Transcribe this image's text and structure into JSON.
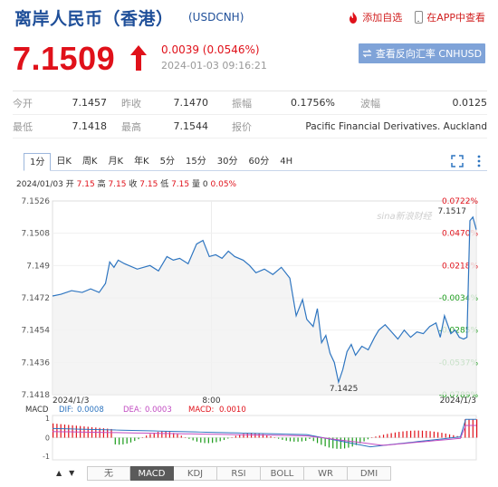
{
  "header": {
    "title": "离岸人民币（香港）",
    "symbol": "(USDCNH)",
    "links": [
      {
        "label": "添加自选",
        "icon": "flame-icon"
      },
      {
        "label": "在APP中查看",
        "icon": "phone-icon"
      }
    ]
  },
  "quote": {
    "price": "7.1509",
    "change": "0.0039 (0.0546%)",
    "time": "2024-01-03 09:16:21",
    "reverse_button": "查看反向汇率 CNHUSD",
    "colors": {
      "up": "#e0111a",
      "down": "#1a9b1a",
      "line": "#2e75c0"
    }
  },
  "stats": [
    [
      {
        "label": "今开",
        "value": "7.1457"
      },
      {
        "label": "昨收",
        "value": "7.1470"
      },
      {
        "label": "振幅",
        "value": "0.1756%"
      },
      {
        "label": "波幅",
        "value": "0.0125"
      }
    ],
    [
      {
        "label": "最低",
        "value": "7.1418"
      },
      {
        "label": "最高",
        "value": "7.1544"
      },
      {
        "label": "报价",
        "value": "Pacific Financial Derivatives. Auckland"
      }
    ]
  ],
  "tabs": [
    "1分",
    "日K",
    "周K",
    "月K",
    "年K",
    "5分",
    "15分",
    "30分",
    "60分",
    "4H"
  ],
  "active_tab": "1分",
  "info_line": {
    "date": "2024/01/03",
    "open_label": "开",
    "open": "7.15",
    "high_label": "高",
    "high": "7.15",
    "close_label": "收",
    "close": "7.15",
    "low_label": "低",
    "low": "7.15",
    "vol_label": "量",
    "vol": "0",
    "pct": "0.05%"
  },
  "watermark": "sina新浪财经",
  "chart_data": {
    "type": "line",
    "y_ticks": [
      "7.1526",
      "7.1508",
      "7.149",
      "7.1472",
      "7.1454",
      "7.1436",
      "7.1418"
    ],
    "pct_ticks": [
      "0.0722%",
      "0.0470%",
      "0.0218%",
      "-0.0034%",
      "-0.0285%",
      "-0.0537%",
      "-0.0789%"
    ],
    "x_labels": [
      "2024/1/3",
      "8:00",
      "2024/1/3"
    ],
    "ylim": [
      7.1418,
      7.1526
    ],
    "prev_close": 7.147,
    "annotations": [
      {
        "label": "7.1517",
        "x": 0.985,
        "y": 7.1517
      },
      {
        "label": "7.1425",
        "x": 0.675,
        "y": 7.1425
      }
    ],
    "series": [
      {
        "x": [
          0,
          0.02,
          0.045,
          0.07,
          0.09,
          0.11,
          0.125,
          0.135,
          0.145,
          0.155,
          0.17,
          0.2,
          0.23,
          0.25,
          0.27,
          0.285,
          0.3,
          0.32,
          0.34,
          0.355,
          0.37,
          0.385,
          0.4,
          0.415,
          0.43,
          0.45,
          0.465,
          0.48,
          0.5,
          0.52,
          0.54,
          0.56,
          0.575,
          0.59,
          0.6,
          0.615,
          0.625,
          0.635,
          0.645,
          0.655,
          0.665,
          0.675,
          0.685,
          0.695,
          0.705,
          0.715,
          0.73,
          0.745,
          0.76,
          0.77,
          0.785,
          0.8,
          0.815,
          0.83,
          0.845,
          0.86,
          0.875,
          0.89,
          0.905,
          0.915,
          0.925,
          0.94,
          0.95,
          0.96,
          0.97,
          0.978,
          0.985,
          0.992,
          1.0
        ],
        "y": [
          7.1473,
          7.1474,
          7.1476,
          7.1475,
          7.1477,
          7.1475,
          7.148,
          7.1492,
          7.1489,
          7.1493,
          7.1491,
          7.1488,
          7.149,
          7.1487,
          7.1495,
          7.1493,
          7.1494,
          7.1491,
          7.1502,
          7.1504,
          7.1495,
          7.1496,
          7.1494,
          7.1498,
          7.1495,
          7.1493,
          7.149,
          7.1486,
          7.1488,
          7.1485,
          7.1489,
          7.1483,
          7.1462,
          7.1471,
          7.146,
          7.1456,
          7.1466,
          7.1447,
          7.1451,
          7.1441,
          7.1436,
          7.1425,
          7.1432,
          7.1442,
          7.1446,
          7.144,
          7.1445,
          7.1443,
          7.145,
          7.1454,
          7.1457,
          7.1453,
          7.1449,
          7.1454,
          7.145,
          7.1453,
          7.1452,
          7.1456,
          7.1458,
          7.145,
          7.1462,
          7.1452,
          7.1454,
          7.145,
          7.1449,
          7.145,
          7.1515,
          7.1517,
          7.151
        ]
      }
    ]
  },
  "macd": {
    "label": "MACD",
    "dif_label": "DIF:",
    "dif": "0.0008",
    "dea_label": "DEA:",
    "dea": "0.0003",
    "macd_label": "MACD:",
    "macd": "0.0010",
    "ticks": [
      "1",
      "0",
      "-1"
    ]
  },
  "indicator_tabs": [
    "无",
    "MACD",
    "KDJ",
    "RSI",
    "BOLL",
    "WR",
    "DMI"
  ],
  "active_indicator": "MACD"
}
